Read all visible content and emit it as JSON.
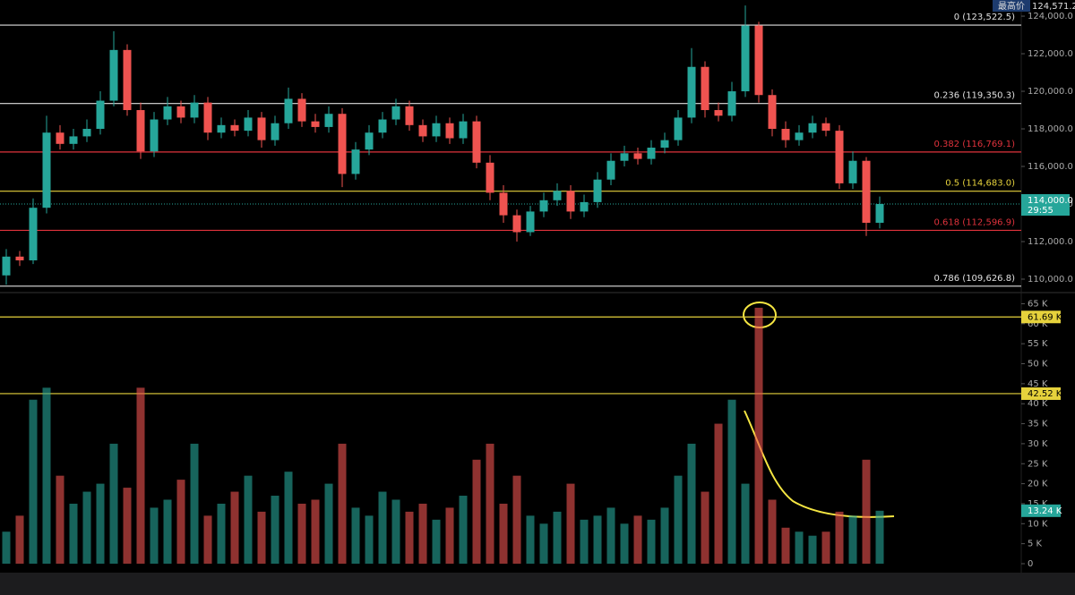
{
  "chart_data": {
    "type": "candlestick",
    "highest": {
      "label": "最高价",
      "value": 124571.2,
      "value_label": "124,571.2"
    },
    "current": {
      "value": 114000,
      "value_label": "114,000.0",
      "countdown": "29:55"
    },
    "ylim": [
      109380,
      124860
    ],
    "yticks": [
      {
        "value": 110000,
        "label": "110,000.0"
      },
      {
        "value": 112000,
        "label": "112,000.0"
      },
      {
        "value": 114000,
        "label": "114,000.0"
      },
      {
        "value": 116000,
        "label": "116,000.0"
      },
      {
        "value": 118000,
        "label": "118,000.0"
      },
      {
        "value": 120000,
        "label": "120,000.0"
      },
      {
        "value": 122000,
        "label": "122,000.0"
      },
      {
        "value": 124000,
        "label": "124,000.0"
      }
    ],
    "fib_levels": [
      {
        "value": 123522.5,
        "label": "0 (123,522.5)",
        "color": "#e0e0e0"
      },
      {
        "value": 119350.3,
        "label": "0.236 (119,350.3)",
        "color": "#e0e0e0"
      },
      {
        "value": 116769.1,
        "label": "0.382 (116,769.1)",
        "color": "#e0323c"
      },
      {
        "value": 114683.0,
        "label": "0.5 (114,683.0)",
        "color": "#e6d23c"
      },
      {
        "value": 112596.9,
        "label": "0.618 (112,596.9)",
        "color": "#e0323c"
      },
      {
        "value": 109626.8,
        "label": "0.786 (109,626.8)",
        "color": "#e0e0e0"
      }
    ],
    "open": [
      110200,
      111200,
      111000,
      113800,
      117800,
      117200,
      117600,
      118000,
      119500,
      122200,
      119000,
      116800,
      118500,
      119200,
      118600,
      119400,
      117800,
      118200,
      117900,
      118600,
      117400,
      118300,
      119600,
      118400,
      118100,
      118800,
      115600,
      116900,
      117800,
      118500,
      119200,
      118200,
      117600,
      118300,
      117500,
      118400,
      116200,
      114600,
      113400,
      112500,
      113600,
      114200,
      114700,
      113600,
      114100,
      115300,
      116300,
      116700,
      116400,
      117000,
      117400,
      118600,
      121300,
      119000,
      118700,
      120000,
      123500,
      119800,
      118000,
      117400,
      117800,
      118300,
      117900,
      115100,
      116300,
      113000
    ],
    "high": [
      111600,
      111500,
      114300,
      118700,
      118200,
      118000,
      118500,
      120000,
      123200,
      122500,
      119400,
      118900,
      119700,
      119500,
      119800,
      119700,
      118600,
      118500,
      119000,
      118900,
      118700,
      120200,
      119900,
      118800,
      119200,
      119100,
      117300,
      118200,
      118900,
      119600,
      119500,
      118500,
      118700,
      118600,
      118800,
      118700,
      116600,
      115000,
      113700,
      113900,
      114600,
      115100,
      115000,
      114500,
      115700,
      116700,
      117100,
      117000,
      117400,
      117800,
      119000,
      122300,
      121600,
      119400,
      120500,
      124571.2,
      123700,
      120100,
      118400,
      118200,
      118700,
      118600,
      118200,
      116800,
      116500,
      114400
    ],
    "low": [
      109700,
      110700,
      110800,
      113500,
      116900,
      116900,
      117300,
      117700,
      119200,
      118700,
      116400,
      116500,
      118200,
      118300,
      118300,
      117400,
      117500,
      117600,
      117600,
      117000,
      117100,
      118000,
      118100,
      117800,
      117800,
      114900,
      115300,
      116600,
      117500,
      118200,
      117900,
      117300,
      117300,
      117200,
      117200,
      115900,
      114200,
      113000,
      112000,
      112300,
      113300,
      113900,
      113200,
      113300,
      113800,
      115000,
      116000,
      116100,
      116100,
      116700,
      117100,
      118300,
      118600,
      118400,
      118400,
      119700,
      119400,
      117600,
      117000,
      117100,
      117500,
      117600,
      114800,
      114800,
      112300,
      112700
    ],
    "close": [
      111200,
      111000,
      113800,
      117800,
      117200,
      117600,
      118000,
      119500,
      122200,
      119000,
      116800,
      118500,
      119200,
      118600,
      119400,
      117800,
      118200,
      117900,
      118600,
      117400,
      118300,
      119600,
      118400,
      118100,
      118800,
      115600,
      116900,
      117800,
      118500,
      119200,
      118200,
      117600,
      118300,
      117500,
      118400,
      116200,
      114600,
      113400,
      112500,
      113600,
      114200,
      114700,
      113600,
      114100,
      115300,
      116300,
      116700,
      116400,
      117000,
      117400,
      118600,
      121300,
      119000,
      118700,
      120000,
      123500,
      119800,
      118000,
      117400,
      117800,
      118300,
      117900,
      115100,
      116300,
      113000,
      114000
    ],
    "up_color": "#26a69a",
    "down_color": "#ef5350",
    "volume": [
      8000,
      12000,
      41000,
      44000,
      22000,
      15000,
      18000,
      20000,
      30000,
      19000,
      44000,
      14000,
      16000,
      21000,
      30000,
      12000,
      15000,
      18000,
      22000,
      13000,
      17000,
      23000,
      15000,
      16000,
      20000,
      30000,
      14000,
      12000,
      18000,
      16000,
      13000,
      15000,
      11000,
      14000,
      17000,
      26000,
      30000,
      15000,
      22000,
      12000,
      10000,
      13000,
      20000,
      11000,
      12000,
      14000,
      10000,
      12000,
      11000,
      14000,
      22000,
      30000,
      18000,
      35000,
      41000,
      20000,
      64000,
      16000,
      9000,
      8000,
      7000,
      8000,
      13000,
      12000,
      26000,
      13240
    ],
    "volume_last_label": "13.24 K",
    "volume_ylim": [
      0,
      66000
    ],
    "volume_yticks": [
      0,
      {
        "value": 5000,
        "label": "5 K"
      },
      {
        "value": 10000,
        "label": "10 K"
      },
      {
        "value": 15000,
        "label": "15 K"
      },
      {
        "value": 20000,
        "label": "20 K"
      },
      {
        "value": 25000,
        "label": "25 K"
      },
      {
        "value": 30000,
        "label": "30 K"
      },
      {
        "value": 35000,
        "label": "35 K"
      },
      {
        "value": 40000,
        "label": "40 K"
      },
      {
        "value": 45000,
        "label": "45 K"
      },
      {
        "value": 50000,
        "label": "50 K"
      },
      {
        "value": 55000,
        "label": "55 K"
      },
      {
        "value": 60000,
        "label": "60 K"
      },
      {
        "value": 65000,
        "label": "65 K"
      }
    ],
    "volume_levels": [
      {
        "value": 61690,
        "label": "61.69 K"
      },
      {
        "value": 42520,
        "label": "42.52 K"
      }
    ],
    "level_color": "#e6d23c"
  }
}
